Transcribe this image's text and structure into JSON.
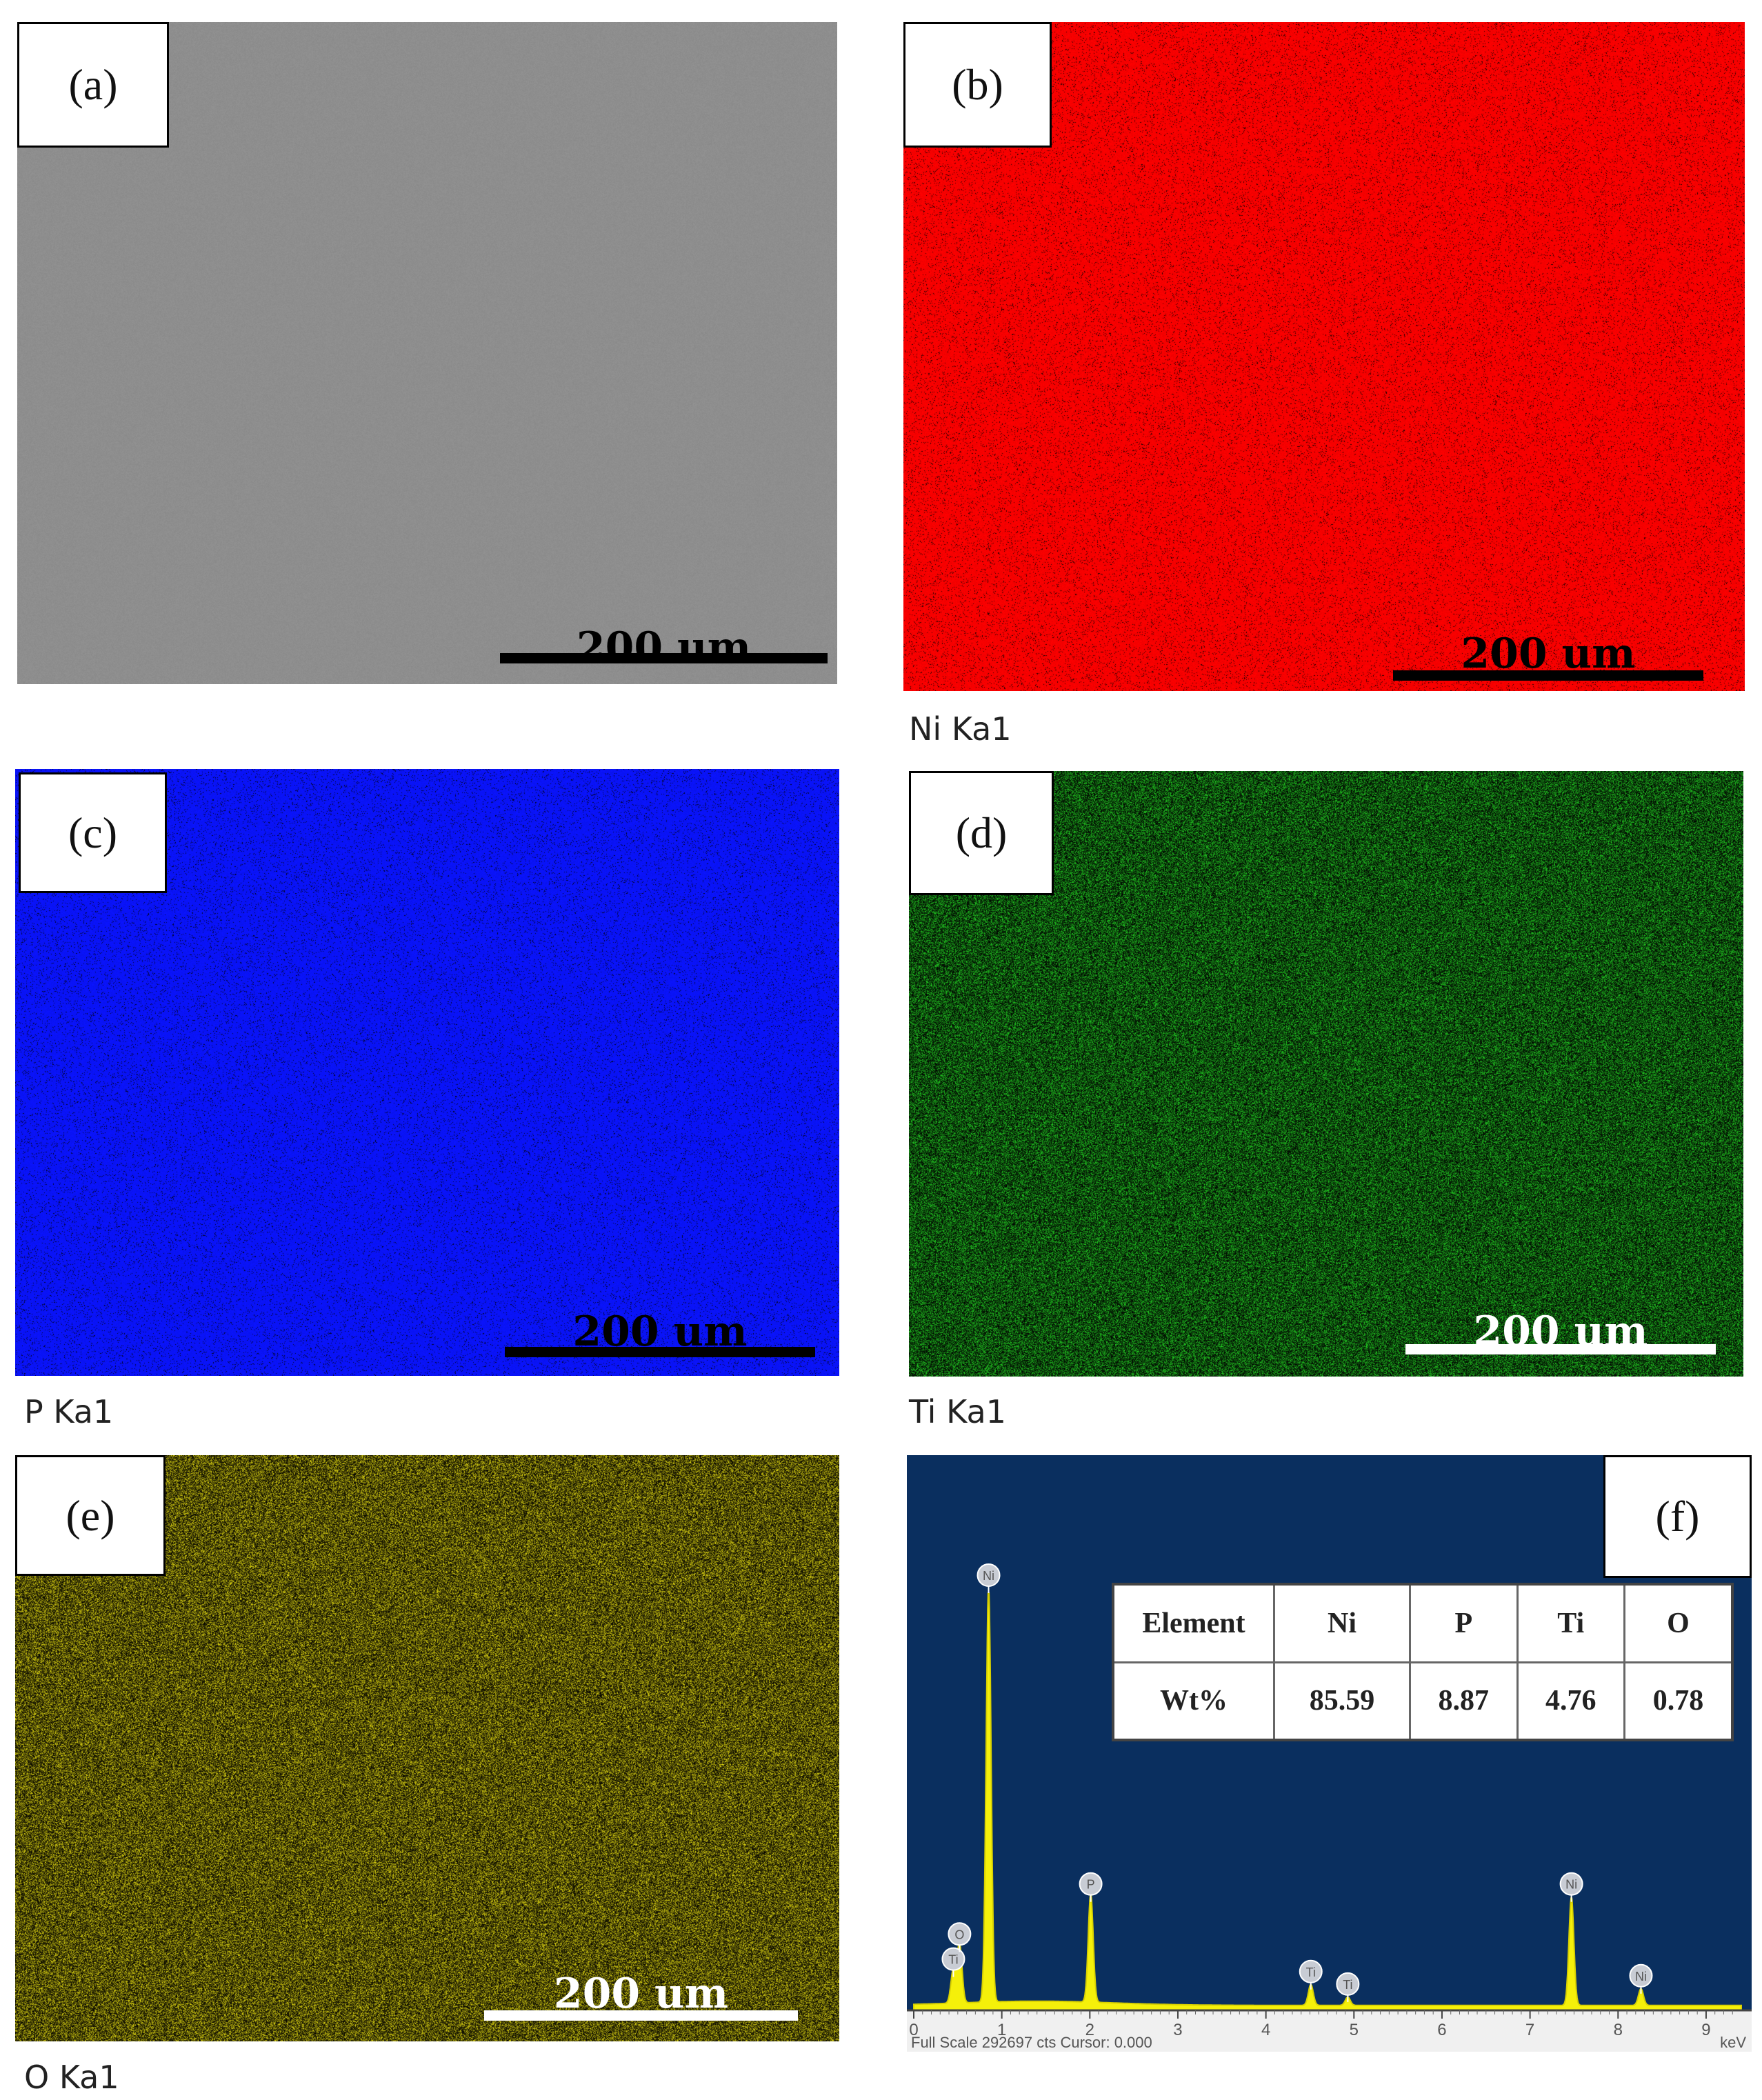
{
  "panels": {
    "a": {
      "tag": "(a)",
      "scale": "200 um"
    },
    "b": {
      "tag": "(b)",
      "scale": "200 um",
      "caption": "Ni Ka1"
    },
    "c": {
      "tag": "(c)",
      "scale": "200 um",
      "caption": "P Ka1"
    },
    "d": {
      "tag": "(d)",
      "scale": "200 um",
      "caption": "Ti Ka1"
    },
    "e": {
      "tag": "(e)",
      "scale": "200 um",
      "caption": "O Ka1"
    },
    "f": {
      "tag": "(f)"
    }
  },
  "colors": {
    "sem_gray": "#8e8e8e",
    "ni_red": "#ff0000",
    "p_blue": "#0a14ff",
    "ti_green": "#1fb81f",
    "o_yellow": "#c8c010",
    "spectrum_bg": "#0a2f5f",
    "spectrum_fill": "#f5f00a"
  },
  "table": {
    "headers": [
      "Element",
      "Ni",
      "P",
      "Ti",
      "O"
    ],
    "row": [
      "Wt%",
      "85.59",
      "8.87",
      "4.76",
      "0.78"
    ]
  },
  "chart_data": {
    "type": "area",
    "x_ticks": [
      "0",
      "1",
      "2",
      "3",
      "4",
      "5",
      "6",
      "7",
      "8",
      "9"
    ],
    "x_unit": "keV",
    "xlim": [
      0,
      9.4
    ],
    "footer": "Full Scale 292697 cts Cursor: 0.000",
    "peaks": [
      {
        "label": "Ti",
        "x": 0.45,
        "rel": 0.08
      },
      {
        "label": "O",
        "x": 0.52,
        "rel": 0.14
      },
      {
        "label": "Ni",
        "x": 0.85,
        "rel": 1.0
      },
      {
        "label": "P",
        "x": 2.01,
        "rel": 0.26
      },
      {
        "label": "Ti",
        "x": 4.51,
        "rel": 0.05
      },
      {
        "label": "Ti",
        "x": 4.93,
        "rel": 0.02
      },
      {
        "label": "Ni",
        "x": 7.47,
        "rel": 0.26
      },
      {
        "label": "Ni",
        "x": 8.26,
        "rel": 0.04
      }
    ]
  }
}
